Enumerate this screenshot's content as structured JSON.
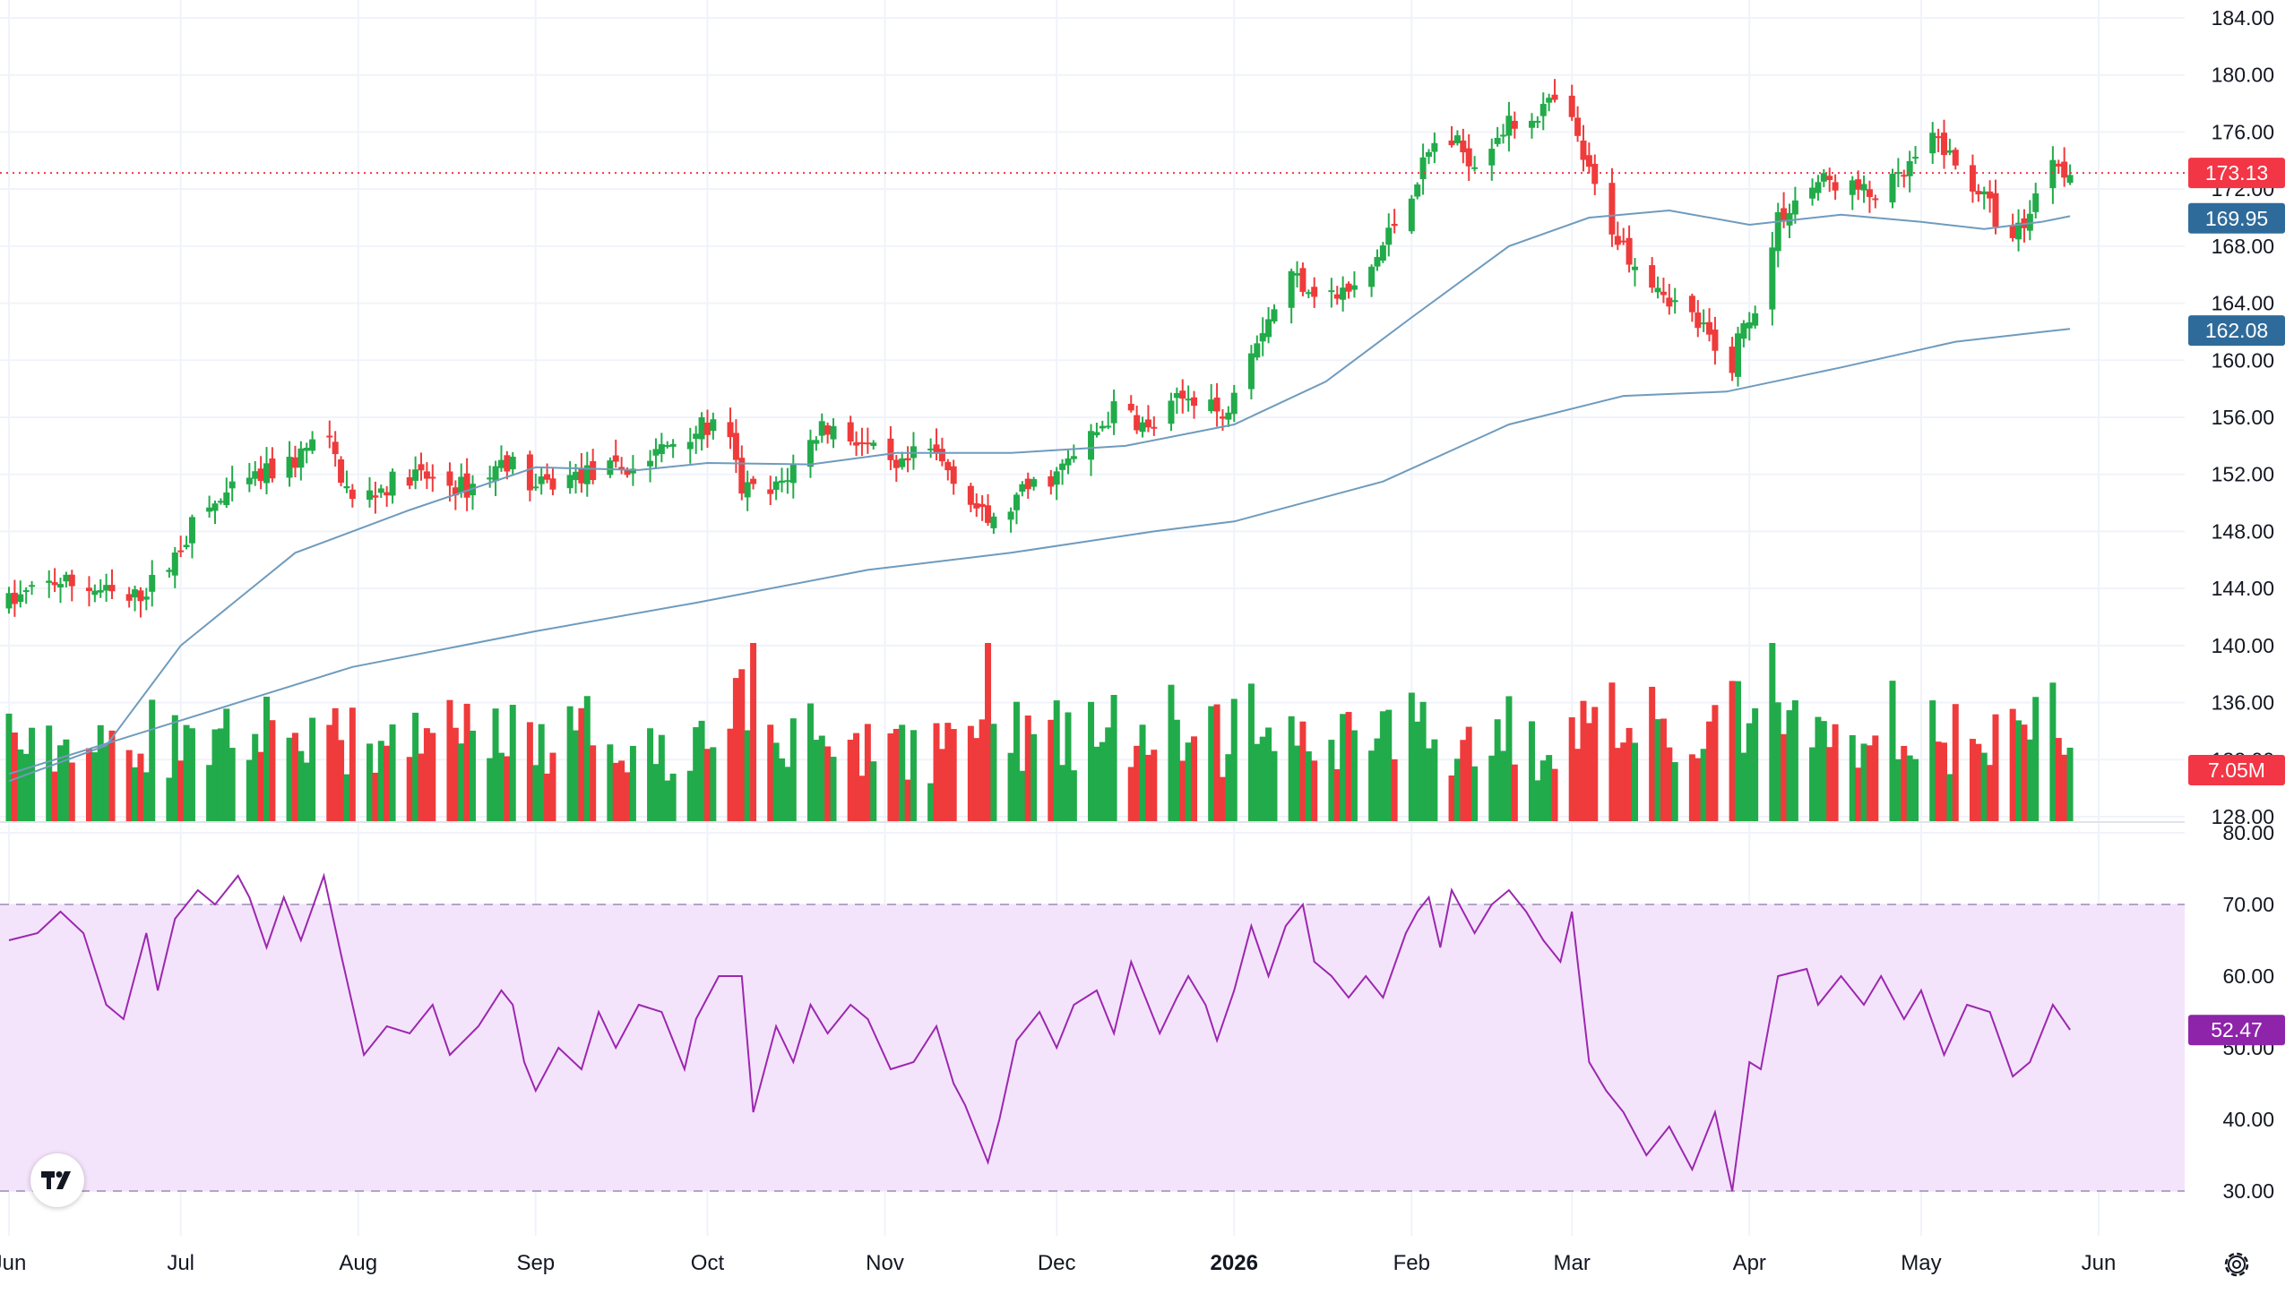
{
  "chart_data": {
    "type": "candlestick",
    "price_axis": {
      "min": 128,
      "max": 184,
      "ticks": [
        "184.00",
        "180.00",
        "176.00",
        "172.00",
        "168.00",
        "164.00",
        "160.00",
        "156.00",
        "152.00",
        "148.00",
        "144.00",
        "140.00",
        "136.00",
        "132.00",
        "128.00"
      ]
    },
    "rsi_axis": {
      "min": 30,
      "max": 80,
      "ticks": [
        "80.00",
        "70.00",
        "60.00",
        "50.00",
        "40.00",
        "30.00"
      ],
      "band": [
        30,
        70
      ]
    },
    "x_labels": [
      {
        "label": "Jun",
        "d": 0
      },
      {
        "label": "Jul",
        "d": 30
      },
      {
        "label": "Aug",
        "d": 61
      },
      {
        "label": "Sep",
        "d": 92
      },
      {
        "label": "Oct",
        "d": 122
      },
      {
        "label": "Nov",
        "d": 153
      },
      {
        "label": "Dec",
        "d": 183
      },
      {
        "label": "2026",
        "d": 214,
        "bold": true
      },
      {
        "label": "Feb",
        "d": 245
      },
      {
        "label": "Mar",
        "d": 273
      },
      {
        "label": "Apr",
        "d": 304
      },
      {
        "label": "May",
        "d": 334
      },
      {
        "label": "Jun",
        "d": 365
      }
    ],
    "price_keys": [
      [
        0,
        143
      ],
      [
        8,
        144.5
      ],
      [
        15,
        144
      ],
      [
        21,
        143
      ],
      [
        27,
        145
      ],
      [
        33,
        149
      ],
      [
        40,
        151
      ],
      [
        50,
        153
      ],
      [
        55,
        155
      ],
      [
        60,
        150
      ],
      [
        70,
        152
      ],
      [
        80,
        151
      ],
      [
        87,
        153
      ],
      [
        92,
        151
      ],
      [
        100,
        152
      ],
      [
        110,
        152.5
      ],
      [
        118,
        155
      ],
      [
        125,
        155.5
      ],
      [
        128,
        151
      ],
      [
        133,
        150.5
      ],
      [
        138,
        153
      ],
      [
        142,
        155.5
      ],
      [
        148,
        154.5
      ],
      [
        155,
        152
      ],
      [
        160,
        154
      ],
      [
        165,
        152
      ],
      [
        170,
        149
      ],
      [
        172,
        148.5
      ],
      [
        178,
        151
      ],
      [
        183,
        152
      ],
      [
        188,
        154
      ],
      [
        194,
        157
      ],
      [
        199,
        155
      ],
      [
        204,
        157
      ],
      [
        209,
        158
      ],
      [
        212,
        155.5
      ],
      [
        215,
        160
      ],
      [
        220,
        163
      ],
      [
        224,
        166
      ],
      [
        228,
        165
      ],
      [
        232,
        164.5
      ],
      [
        236,
        165
      ],
      [
        240,
        168
      ],
      [
        245,
        172
      ],
      [
        250,
        176
      ],
      [
        256,
        174
      ],
      [
        260,
        176
      ],
      [
        265,
        177
      ],
      [
        270,
        178
      ],
      [
        273,
        176.5
      ],
      [
        276,
        173
      ],
      [
        279,
        170
      ],
      [
        282,
        168
      ],
      [
        285,
        166.5
      ],
      [
        288,
        165.5
      ],
      [
        291,
        164
      ],
      [
        294,
        163
      ],
      [
        297,
        161.5
      ],
      [
        300,
        158
      ],
      [
        302,
        161.5
      ],
      [
        305,
        164
      ],
      [
        306,
        163.5
      ],
      [
        309,
        170
      ],
      [
        313,
        171.5
      ],
      [
        316,
        172.5
      ],
      [
        320,
        172.5
      ],
      [
        325,
        171.5
      ],
      [
        330,
        172.5
      ],
      [
        334,
        174.5
      ],
      [
        337,
        175.5
      ],
      [
        340,
        173.5
      ],
      [
        344,
        172
      ],
      [
        347,
        170
      ],
      [
        350,
        168.5
      ],
      [
        353,
        170.5
      ],
      [
        357,
        174.5
      ],
      [
        360,
        173.1
      ]
    ],
    "ma_fast": [
      [
        0,
        130.5
      ],
      [
        17,
        133
      ],
      [
        30,
        140
      ],
      [
        50,
        146.5
      ],
      [
        70,
        149.5
      ],
      [
        92,
        152.5
      ],
      [
        110,
        152.3
      ],
      [
        122,
        152.8
      ],
      [
        140,
        152.7
      ],
      [
        155,
        153.5
      ],
      [
        175,
        153.5
      ],
      [
        195,
        154
      ],
      [
        214,
        155.5
      ],
      [
        230,
        158.5
      ],
      [
        245,
        163
      ],
      [
        262,
        168
      ],
      [
        276,
        170
      ],
      [
        290,
        170.5
      ],
      [
        304,
        169.5
      ],
      [
        320,
        170.2
      ],
      [
        334,
        169.7
      ],
      [
        345,
        169.2
      ],
      [
        355,
        169.7
      ],
      [
        360,
        170.1
      ]
    ],
    "ma_slow": [
      [
        0,
        131
      ],
      [
        40,
        136
      ],
      [
        60,
        138.5
      ],
      [
        92,
        141
      ],
      [
        120,
        143
      ],
      [
        150,
        145.3
      ],
      [
        175,
        146.5
      ],
      [
        200,
        148
      ],
      [
        214,
        148.7
      ],
      [
        240,
        151.5
      ],
      [
        262,
        155.5
      ],
      [
        282,
        157.5
      ],
      [
        300,
        157.8
      ],
      [
        320,
        159.5
      ],
      [
        340,
        161.3
      ],
      [
        360,
        162.2
      ]
    ],
    "rsi_keys": [
      [
        0,
        65
      ],
      [
        5,
        66
      ],
      [
        9,
        69
      ],
      [
        13,
        66
      ],
      [
        17,
        56
      ],
      [
        20,
        54
      ],
      [
        24,
        66
      ],
      [
        26,
        58
      ],
      [
        29,
        68
      ],
      [
        33,
        72
      ],
      [
        36,
        70
      ],
      [
        40,
        74
      ],
      [
        42,
        71
      ],
      [
        45,
        64
      ],
      [
        48,
        71
      ],
      [
        51,
        65
      ],
      [
        55,
        74
      ],
      [
        58,
        63
      ],
      [
        62,
        49
      ],
      [
        66,
        53
      ],
      [
        70,
        52
      ],
      [
        74,
        56
      ],
      [
        77,
        49
      ],
      [
        82,
        53
      ],
      [
        86,
        58
      ],
      [
        88,
        56
      ],
      [
        90,
        48
      ],
      [
        92,
        44
      ],
      [
        96,
        50
      ],
      [
        100,
        47
      ],
      [
        103,
        55
      ],
      [
        106,
        50
      ],
      [
        110,
        56
      ],
      [
        114,
        55
      ],
      [
        118,
        47
      ],
      [
        120,
        54
      ],
      [
        124,
        60
      ],
      [
        128,
        60
      ],
      [
        130,
        41
      ],
      [
        134,
        53
      ],
      [
        137,
        48
      ],
      [
        140,
        56
      ],
      [
        143,
        52
      ],
      [
        147,
        56
      ],
      [
        150,
        54
      ],
      [
        154,
        47
      ],
      [
        158,
        48
      ],
      [
        162,
        53
      ],
      [
        165,
        45
      ],
      [
        167,
        42
      ],
      [
        169,
        38
      ],
      [
        171,
        34
      ],
      [
        173,
        40
      ],
      [
        176,
        51
      ],
      [
        180,
        55
      ],
      [
        183,
        50
      ],
      [
        186,
        56
      ],
      [
        190,
        58
      ],
      [
        193,
        52
      ],
      [
        196,
        62
      ],
      [
        198,
        58
      ],
      [
        201,
        52
      ],
      [
        204,
        57
      ],
      [
        206,
        60
      ],
      [
        209,
        56
      ],
      [
        211,
        51
      ],
      [
        214,
        58
      ],
      [
        217,
        67
      ],
      [
        220,
        60
      ],
      [
        223,
        67
      ],
      [
        226,
        70
      ],
      [
        228,
        62
      ],
      [
        231,
        60
      ],
      [
        234,
        57
      ],
      [
        237,
        60
      ],
      [
        240,
        57
      ],
      [
        244,
        66
      ],
      [
        246,
        69
      ],
      [
        248,
        71
      ],
      [
        250,
        64
      ],
      [
        252,
        72
      ],
      [
        256,
        66
      ],
      [
        259,
        70
      ],
      [
        262,
        72
      ],
      [
        265,
        69
      ],
      [
        268,
        65
      ],
      [
        271,
        62
      ],
      [
        273,
        69
      ],
      [
        276,
        48
      ],
      [
        279,
        44
      ],
      [
        282,
        41
      ],
      [
        286,
        35
      ],
      [
        290,
        39
      ],
      [
        294,
        33
      ],
      [
        298,
        41
      ],
      [
        301,
        30
      ],
      [
        304,
        48
      ],
      [
        306,
        47
      ],
      [
        309,
        60
      ],
      [
        314,
        61
      ],
      [
        316,
        56
      ],
      [
        320,
        60
      ],
      [
        324,
        56
      ],
      [
        327,
        60
      ],
      [
        331,
        54
      ],
      [
        334,
        58
      ],
      [
        338,
        49
      ],
      [
        342,
        56
      ],
      [
        346,
        55
      ],
      [
        350,
        46
      ],
      [
        353,
        48
      ],
      [
        357,
        56
      ],
      [
        360,
        52.5
      ]
    ],
    "last_price": "173.13",
    "ma_fast_label": "169.95",
    "ma_slow_label": "162.08",
    "last_volume": "7.05M",
    "last_rsi": "52.47",
    "colors": {
      "up": "#22ab4a",
      "down": "#ef3b3b",
      "ma": "#6f9bbd",
      "rsi": "#9c27b0",
      "rsi_band": "#f4e4fb",
      "price_label": "#f23645",
      "ma_label": "#2f6b9a",
      "rsi_label": "#8e24aa"
    }
  }
}
